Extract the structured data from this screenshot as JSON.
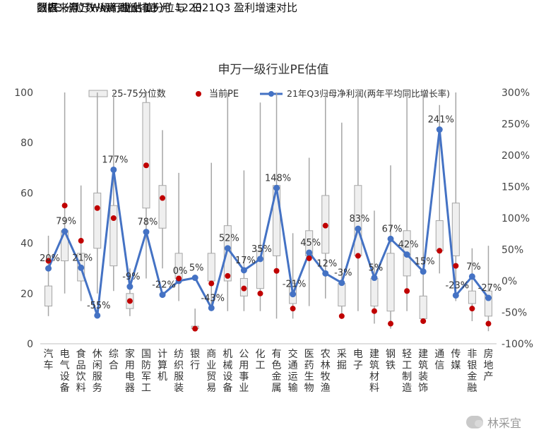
{
  "captions": {
    "title": "图表：申万一级行业估值分位与 2021Q3 盈利增速对比",
    "subtitle": "（PE 分位数从高到低排序）",
    "source": "数据来源：Wind 截止 11 月 12 日"
  },
  "watermark": "林采宜",
  "colors": {
    "box_fill": "#efefef",
    "box_stroke": "#a6a6a6",
    "whisker": "#a6a6a6",
    "pe_dot": "#c00000",
    "growth_line": "#4472c4"
  },
  "chart_data": {
    "type": "box-line",
    "title": "申万一级行业PE估值",
    "legend": [
      "25-75分位数",
      "当前PE",
      "21年Q3归母净利润(两年平均同比增长率)"
    ],
    "legend_position": "top",
    "y_left": {
      "range": [
        0,
        100
      ],
      "ticks": [
        "0",
        "20",
        "40",
        "60",
        "80",
        "100"
      ]
    },
    "y_right": {
      "range": [
        -100,
        300
      ],
      "ticks": [
        "-100%",
        "-50%",
        "0%",
        "50%",
        "100%",
        "150%",
        "200%",
        "250%",
        "300%"
      ]
    },
    "grid": false,
    "categories": [
      "汽车",
      "电气设备",
      "食品饮料",
      "休闲服务",
      "综合",
      "家用电器",
      "国防军工",
      "计算机",
      "纺织服装",
      "银行",
      "商业贸易",
      "机械设备",
      "公用事业",
      "化工",
      "有色金属",
      "交通运输",
      "医药生物",
      "农林牧渔",
      "采掘",
      "电子",
      "建筑材料",
      "钢铁",
      "轻工制造",
      "建筑装饰",
      "通信",
      "传媒",
      "非银金融",
      "房地产"
    ],
    "whisker_min": [
      11,
      20,
      17,
      20,
      21,
      11,
      26,
      30,
      17,
      5,
      13,
      13,
      13,
      13,
      10,
      10,
      15,
      18,
      10,
      13,
      8,
      6,
      13,
      8,
      28,
      17,
      9,
      5
    ],
    "whisker_max": [
      43,
      100,
      63,
      100,
      100,
      30,
      100,
      85,
      68,
      14,
      72,
      100,
      69,
      96,
      100,
      44,
      74,
      100,
      88,
      100,
      53,
      71,
      100,
      100,
      95,
      100,
      38,
      39
    ],
    "q25": [
      15,
      33,
      25,
      38,
      31,
      14,
      54,
      46,
      26,
      6,
      25,
      25,
      19,
      22,
      35,
      16,
      35,
      36,
      15,
      35,
      15,
      13,
      27,
      10,
      37,
      35,
      16,
      11
    ],
    "q75": [
      23,
      45,
      36,
      60,
      55,
      20,
      96,
      63,
      36,
      7,
      36,
      47,
      26,
      37,
      63,
      24,
      45,
      59,
      24,
      63,
      26,
      36,
      45,
      19,
      49,
      56,
      21,
      21
    ],
    "current_pe": [
      33,
      55,
      41,
      54,
      50,
      17,
      71,
      58,
      26,
      6,
      24,
      27,
      22,
      20,
      29,
      14,
      34,
      47,
      11,
      35,
      13,
      8,
      21,
      9,
      37,
      31,
      14,
      8
    ],
    "growth_pct": [
      20,
      79,
      21,
      -55,
      177,
      -9,
      78,
      -22,
      0,
      5,
      -43,
      52,
      17,
      35,
      148,
      -21,
      45,
      12,
      -3,
      83,
      5,
      67,
      42,
      15,
      241,
      -23,
      7,
      -27
    ],
    "growth_labels": [
      "20%",
      "79%",
      "21%",
      "-55%",
      "177%",
      "-9%",
      "78%",
      "-22%",
      "0%",
      "5%",
      "-43%",
      "52%",
      "17%",
      "35%",
      "148%",
      "-21%",
      "45%",
      "12%",
      "-3%",
      "83%",
      "5%",
      "67%",
      "42%",
      "15%",
      "241%",
      "-23%",
      "7%",
      "-27%"
    ]
  }
}
